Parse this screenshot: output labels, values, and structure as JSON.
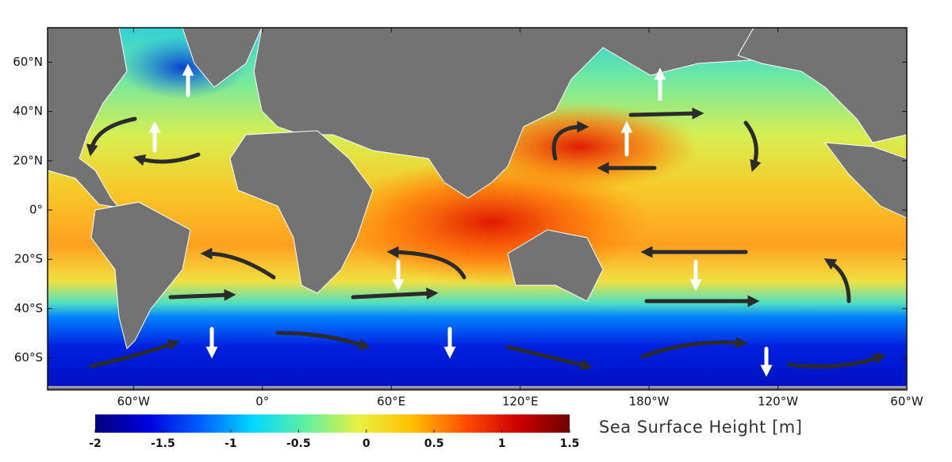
{
  "map": {
    "lonlim": [
      -100,
      300
    ],
    "latlim": [
      -73,
      74
    ],
    "lat_ticks": [
      {
        "value": 60,
        "label": "60°N"
      },
      {
        "value": 40,
        "label": "40°N"
      },
      {
        "value": 20,
        "label": "20°N"
      },
      {
        "value": 0,
        "label": "0°"
      },
      {
        "value": -20,
        "label": "20°S"
      },
      {
        "value": -40,
        "label": "40°S"
      },
      {
        "value": -60,
        "label": "60°S"
      }
    ],
    "lon_ticks": [
      {
        "value": -60,
        "label": "60°W"
      },
      {
        "value": 0,
        "label": "0°"
      },
      {
        "value": 60,
        "label": "60°E"
      },
      {
        "value": 120,
        "label": "120°E"
      },
      {
        "value": 180,
        "label": "180°W"
      },
      {
        "value": 240,
        "label": "120°W"
      },
      {
        "value": 300,
        "label": "60°W"
      }
    ],
    "colorbar": {
      "label": "Sea Surface Height [m]",
      "range": [
        -2,
        1.5
      ],
      "ticks": [
        -2,
        -1.5,
        -1,
        -0.5,
        0,
        0.5,
        1,
        1.5
      ],
      "colors": [
        "#00007a",
        "#0000e0",
        "#0060ff",
        "#00d8ff",
        "#60f0a0",
        "#e8f040",
        "#ffc000",
        "#ff5000",
        "#d00000",
        "#700000"
      ]
    }
  }
}
